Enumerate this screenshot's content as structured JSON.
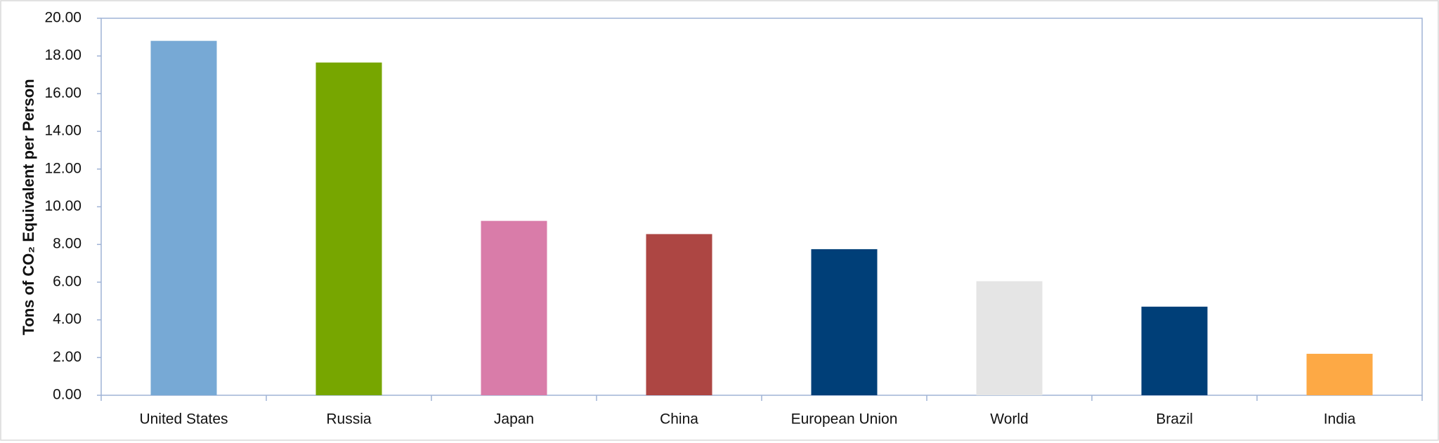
{
  "chart_data": {
    "type": "bar",
    "y_label": "Tons of CO₂ Equivalent per Person",
    "categories": [
      "United States",
      "Russia",
      "Japan",
      "China",
      "European Union",
      "World",
      "Brazil",
      "India"
    ],
    "values": [
      18.8,
      17.65,
      9.25,
      8.55,
      7.75,
      6.05,
      4.7,
      2.2
    ],
    "colors": [
      "#77a9d5",
      "#77a600",
      "#d97ca9",
      "#ad4643",
      "#003f78",
      "#e5e5e5",
      "#003f78",
      "#fda945"
    ],
    "ylim": [
      0,
      20
    ],
    "yticks": [
      {
        "value": 0,
        "label": "0.00"
      },
      {
        "value": 2,
        "label": "2.00"
      },
      {
        "value": 4,
        "label": "4.00"
      },
      {
        "value": 6,
        "label": "6.00"
      },
      {
        "value": 8,
        "label": "8.00"
      },
      {
        "value": 10,
        "label": "10.00"
      },
      {
        "value": 12,
        "label": "12.00"
      },
      {
        "value": 14,
        "label": "14.00"
      },
      {
        "value": 16,
        "label": "16.00"
      },
      {
        "value": 18,
        "label": "18.00"
      },
      {
        "value": 20,
        "label": "20.00"
      }
    ],
    "grid": false
  }
}
